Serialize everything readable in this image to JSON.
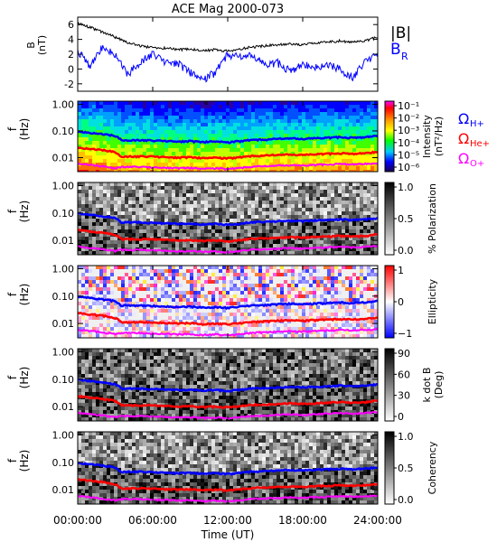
{
  "title": "ACE Mag 2000-073",
  "x_axis": {
    "label": "Time (UT)",
    "ticks": [
      "00:00:00",
      "06:00:00",
      "12:00:00",
      "18:00:00",
      "24:00:00"
    ],
    "hours": [
      0,
      6,
      12,
      18,
      24
    ]
  },
  "legend_b": {
    "abs": "|B|",
    "br": "B",
    "br_sub": "R"
  },
  "gyro_labels": [
    {
      "omega": "Ω",
      "sub": "H+",
      "color": "#0000ff"
    },
    {
      "omega": "Ω",
      "sub": "He+",
      "color": "#ff0000"
    },
    {
      "omega": "Ω",
      "sub": "O+",
      "color": "#ff00ff"
    }
  ],
  "colors": {
    "abs_b": "#000000",
    "br": "#0000ff",
    "h_plus": "#0000ff",
    "he_plus": "#ff0000",
    "o_plus": "#ff00ff"
  },
  "chart_data": [
    {
      "type": "line",
      "panel": "magnetic-field",
      "ylabel": "B",
      "yunit": "(nT)",
      "ylim": [
        -3,
        7
      ],
      "yticks": [
        "-2",
        "0",
        "2",
        "4",
        "6"
      ],
      "xlim": [
        0,
        24
      ],
      "series": [
        {
          "name": "|B|",
          "x": [
            0,
            1,
            2,
            3,
            4,
            5,
            6,
            7,
            8,
            9,
            10,
            11,
            12,
            13,
            14,
            15,
            16,
            17,
            18,
            19,
            20,
            21,
            22,
            23,
            24
          ],
          "values": [
            6.2,
            5.6,
            5.0,
            4.3,
            3.6,
            3.1,
            2.9,
            2.8,
            2.6,
            2.7,
            2.5,
            2.6,
            2.4,
            2.7,
            3.0,
            3.1,
            3.3,
            3.4,
            3.3,
            3.5,
            3.6,
            3.8,
            3.6,
            3.8,
            4.3
          ]
        },
        {
          "name": "B_R",
          "x": [
            0,
            1,
            2,
            3,
            4,
            5,
            6,
            7,
            8,
            9,
            10,
            11,
            12,
            13,
            14,
            15,
            16,
            17,
            18,
            19,
            20,
            21,
            22,
            23,
            24
          ],
          "values": [
            2.5,
            0.3,
            3.0,
            2.0,
            -0.8,
            1.0,
            2.0,
            1.0,
            0.8,
            -0.5,
            -1.5,
            -0.5,
            2.0,
            1.5,
            1.8,
            0.5,
            0.8,
            -0.3,
            0.5,
            0.3,
            0.5,
            0.0,
            -1.2,
            1.0,
            2.2
          ]
        }
      ]
    },
    {
      "type": "heatmap",
      "panel": "intensity",
      "ylabel": "f",
      "yunit": "(Hz)",
      "yscale": "log",
      "ylim": [
        0.003,
        1.3
      ],
      "yticks": [
        "1.00",
        "0.10",
        "0.01"
      ],
      "colorbar": {
        "label": "Intensity",
        "unit": "(nT²/Hz)",
        "ticks": [
          "10⁻¹",
          "10⁻²",
          "10⁻³",
          "10⁻⁴",
          "10⁻⁵",
          "10⁻⁶"
        ],
        "palette": "rainbow"
      }
    },
    {
      "type": "heatmap",
      "panel": "polarization",
      "ylabel": "f",
      "yunit": "(Hz)",
      "yscale": "log",
      "ylim": [
        0.003,
        1.3
      ],
      "yticks": [
        "1.00",
        "0.10",
        "0.01"
      ],
      "colorbar": {
        "label": "% Polarization",
        "unit": "",
        "ticks": [
          "1.0",
          "0.5",
          "0.0"
        ],
        "palette": "gray"
      }
    },
    {
      "type": "heatmap",
      "panel": "ellipticity",
      "ylabel": "f",
      "yunit": "(Hz)",
      "yscale": "log",
      "ylim": [
        0.003,
        1.3
      ],
      "yticks": [
        "1.00",
        "0.10",
        "0.01"
      ],
      "colorbar": {
        "label": "Ellipticity",
        "unit": "",
        "ticks": [
          "1",
          "0",
          "−1"
        ],
        "palette": "bwr"
      }
    },
    {
      "type": "heatmap",
      "panel": "kdotb",
      "ylabel": "f",
      "yunit": "(Hz)",
      "yscale": "log",
      "ylim": [
        0.003,
        1.3
      ],
      "yticks": [
        "1.00",
        "0.10",
        "0.01"
      ],
      "colorbar": {
        "label": "k dot B",
        "unit": "(Deg)",
        "ticks": [
          "90",
          "60",
          "30",
          "0"
        ],
        "palette": "gray"
      }
    },
    {
      "type": "heatmap",
      "panel": "coherency",
      "ylabel": "f",
      "yunit": "(Hz)",
      "yscale": "log",
      "ylim": [
        0.003,
        1.3
      ],
      "yticks": [
        "1.00",
        "0.10",
        "0.01"
      ],
      "colorbar": {
        "label": "Coherency",
        "unit": "",
        "ticks": [
          "1.0",
          "0.5",
          "0.0"
        ],
        "palette": "gray"
      }
    }
  ],
  "gyrofrequency_curves": {
    "x": [
      0,
      1,
      2,
      3,
      3.5,
      4,
      5,
      6,
      7,
      8,
      9,
      10,
      11,
      12,
      13,
      14,
      15,
      16,
      17,
      18,
      19,
      20,
      21,
      22,
      23,
      24
    ],
    "h_plus_hz": [
      0.095,
      0.085,
      0.075,
      0.065,
      0.045,
      0.045,
      0.045,
      0.043,
      0.042,
      0.04,
      0.041,
      0.038,
      0.04,
      0.037,
      0.041,
      0.046,
      0.047,
      0.05,
      0.052,
      0.05,
      0.053,
      0.055,
      0.058,
      0.055,
      0.058,
      0.065
    ],
    "he_plus_hz": [
      0.024,
      0.021,
      0.019,
      0.016,
      0.011,
      0.011,
      0.011,
      0.011,
      0.0105,
      0.01,
      0.0103,
      0.0095,
      0.01,
      0.0093,
      0.0103,
      0.0115,
      0.0118,
      0.0125,
      0.013,
      0.0125,
      0.0133,
      0.0138,
      0.0145,
      0.0138,
      0.0145,
      0.0163
    ],
    "o_plus_hz": [
      0.0059,
      0.0053,
      0.0047,
      0.0041,
      0.0045,
      0.0045,
      0.0045,
      0.0043,
      0.0042,
      0.004,
      0.0041,
      0.0038,
      0.004,
      0.0037,
      0.0041,
      0.0046,
      0.0047,
      0.005,
      0.0052,
      0.005,
      0.0053,
      0.0055,
      0.0058,
      0.0055,
      0.0058,
      0.0062
    ]
  }
}
